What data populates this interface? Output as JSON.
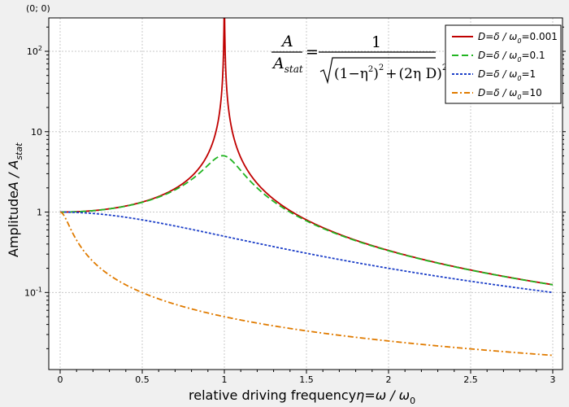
{
  "chart_data": {
    "type": "line",
    "title": "",
    "corner_label": "(0; 0)",
    "xlabel": "relative driving frequency",
    "xlabel_math": "η=ω / ω",
    "xlabel_sub": "0",
    "ylabel": "Amplitude",
    "ylabel_math": "A / A",
    "ylabel_sub": "stat",
    "xlim": [
      0,
      3
    ],
    "ylim": [
      0.011,
      260
    ],
    "yscale": "log",
    "grid": true,
    "legend_position": "top-right",
    "x_ticks": [
      {
        "value": 0,
        "label": "0"
      },
      {
        "value": 0.5,
        "label": "0.5"
      },
      {
        "value": 1,
        "label": "1"
      },
      {
        "value": 1.5,
        "label": "1.5"
      },
      {
        "value": 2,
        "label": "2"
      },
      {
        "value": 2.5,
        "label": "2.5"
      },
      {
        "value": 3,
        "label": "3"
      }
    ],
    "y_ticks": [
      {
        "value": 0.1,
        "base": "10",
        "exp": "-1"
      },
      {
        "value": 1,
        "base": "1",
        "exp": ""
      },
      {
        "value": 10,
        "base": "10",
        "exp": ""
      },
      {
        "value": 100,
        "base": "10",
        "exp": "2"
      }
    ],
    "formula": {
      "num": "A",
      "den": "A",
      "den_sub": "stat",
      "eq": "=",
      "rhs_num": "1",
      "rhs_den_part1": "(1−η",
      "rhs_den_sup1": "2",
      "rhs_den_part2": ")",
      "rhs_den_sup2": "2",
      "rhs_den_plus": "+",
      "rhs_den_part3": "(2η D)",
      "rhs_den_sup3": "2"
    },
    "series": [
      {
        "name": "D=δ / ω0=0.001",
        "label_pre": "D=δ / ω",
        "label_sub": "0",
        "label_post": "=0.001",
        "damping": 0.001,
        "color": "#c00000",
        "dash": ""
      },
      {
        "name": "D=δ / ω0=0.1",
        "label_pre": "D=δ / ω",
        "label_sub": "0",
        "label_post": "=0.1",
        "damping": 0.1,
        "color": "#22b522",
        "dash": "8,4"
      },
      {
        "name": "D=δ / ω0=1",
        "label_pre": "D=δ / ω",
        "label_sub": "0",
        "label_post": "=1",
        "damping": 1,
        "color": "#1c3fc8",
        "dash": "3,2"
      },
      {
        "name": "D=δ / ω0=10",
        "label_pre": "D=δ / ω",
        "label_sub": "0",
        "label_post": "=10",
        "damping": 10,
        "color": "#e07b00",
        "dash": "7,3,2,3"
      }
    ]
  }
}
